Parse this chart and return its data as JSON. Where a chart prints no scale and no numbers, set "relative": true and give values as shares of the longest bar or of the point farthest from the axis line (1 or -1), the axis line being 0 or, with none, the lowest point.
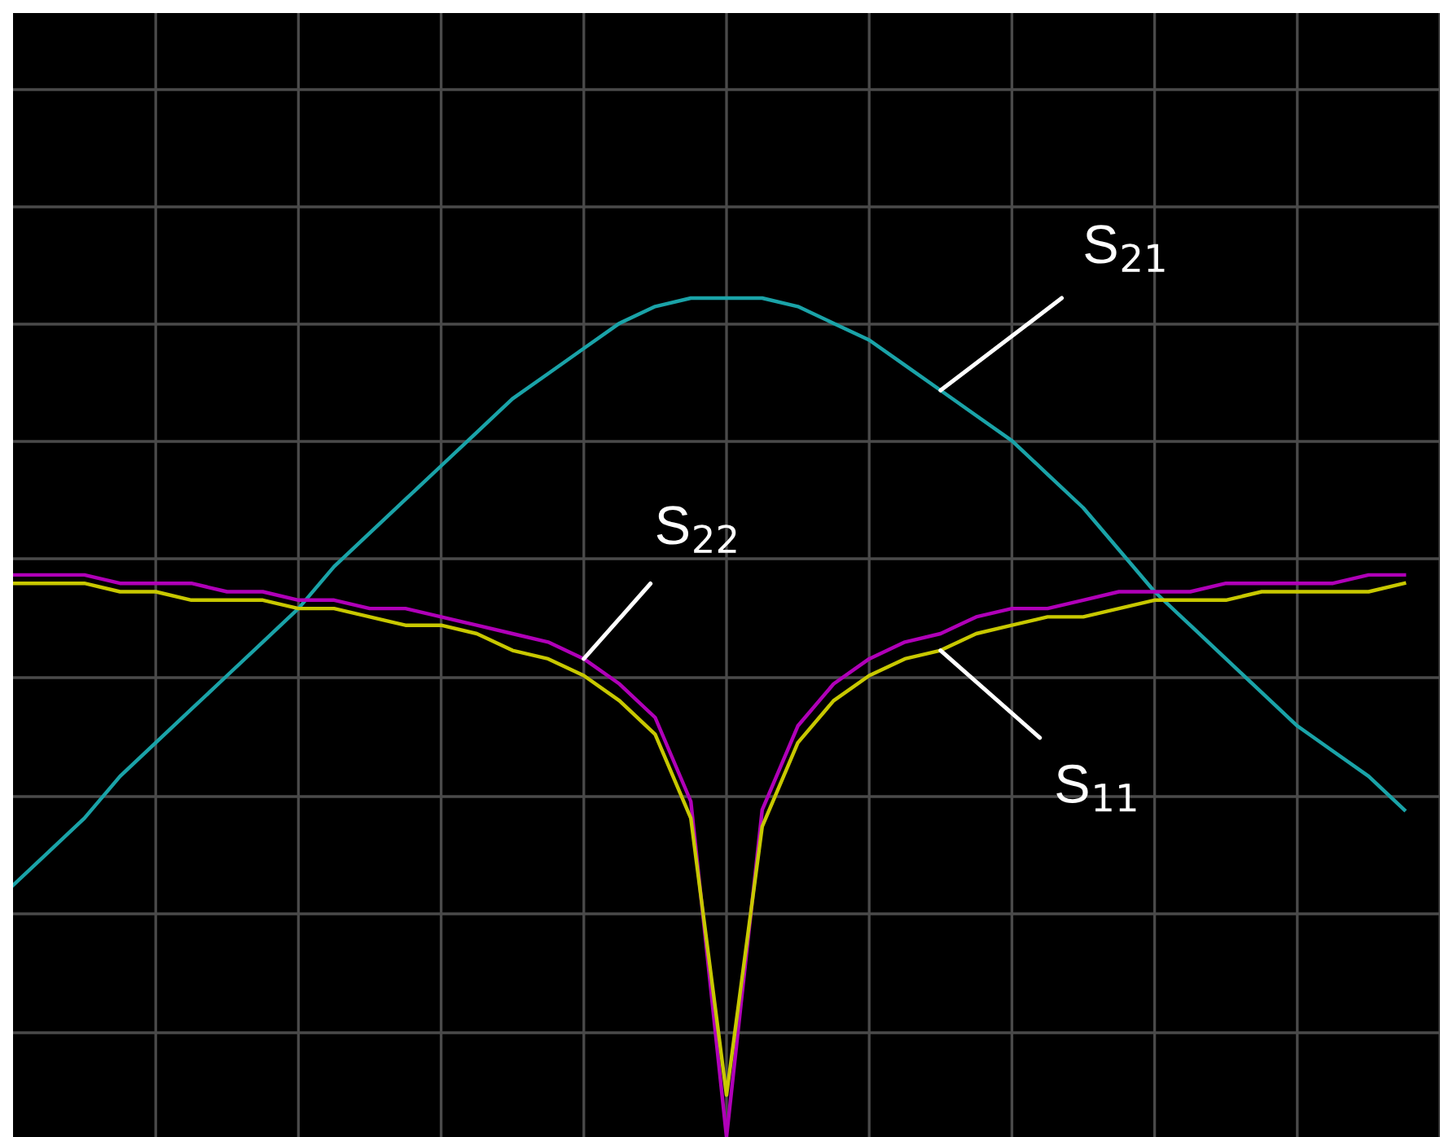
{
  "chart_data": {
    "type": "line",
    "relative": true,
    "grid": true,
    "legend": false,
    "categories": [
      null,
      null,
      null,
      null,
      null,
      null,
      null,
      null,
      null,
      null,
      null,
      null,
      null,
      null,
      null,
      null,
      null,
      null,
      null,
      null,
      null,
      null,
      null,
      null,
      null,
      null,
      null,
      null,
      null,
      null,
      null,
      null,
      null,
      null,
      null,
      null,
      null,
      null,
      null,
      null
    ],
    "series": [
      {
        "name": "S$_{21}$",
        "color": "#1aa3a8",
        "values": [
          0.3,
          0.34,
          0.38,
          0.43,
          0.47,
          0.51,
          0.55,
          0.59,
          0.63,
          0.68,
          0.72,
          0.76,
          0.8,
          0.84,
          0.88,
          0.91,
          0.94,
          0.97,
          0.99,
          1.0,
          1.0,
          1.0,
          0.99,
          0.97,
          0.95,
          0.92,
          0.89,
          0.86,
          0.83,
          0.79,
          0.75,
          0.7,
          0.65,
          0.61,
          0.57,
          0.53,
          0.49,
          0.46,
          0.43,
          0.39
        ]
      },
      {
        "name": "S$_{22}$",
        "color": "#b000b8",
        "values": [
          0.67,
          0.67,
          0.67,
          0.66,
          0.66,
          0.66,
          0.65,
          0.65,
          0.64,
          0.64,
          0.63,
          0.63,
          0.62,
          0.61,
          0.6,
          0.59,
          0.57,
          0.54,
          0.5,
          0.4,
          0.0,
          0.39,
          0.49,
          0.54,
          0.57,
          0.59,
          0.6,
          0.62,
          0.63,
          0.63,
          0.64,
          0.65,
          0.65,
          0.65,
          0.66,
          0.66,
          0.66,
          0.66,
          0.67,
          0.67
        ]
      },
      {
        "name": "S$_{11}$",
        "color": "#c8c800",
        "values": [
          0.66,
          0.66,
          0.66,
          0.65,
          0.65,
          0.64,
          0.64,
          0.64,
          0.63,
          0.63,
          0.62,
          0.61,
          0.61,
          0.6,
          0.58,
          0.57,
          0.55,
          0.52,
          0.48,
          0.38,
          0.05,
          0.37,
          0.47,
          0.52,
          0.55,
          0.57,
          0.58,
          0.6,
          0.61,
          0.62,
          0.62,
          0.63,
          0.64,
          0.64,
          0.64,
          0.65,
          0.65,
          0.65,
          0.65,
          0.66
        ]
      }
    ]
  }
}
